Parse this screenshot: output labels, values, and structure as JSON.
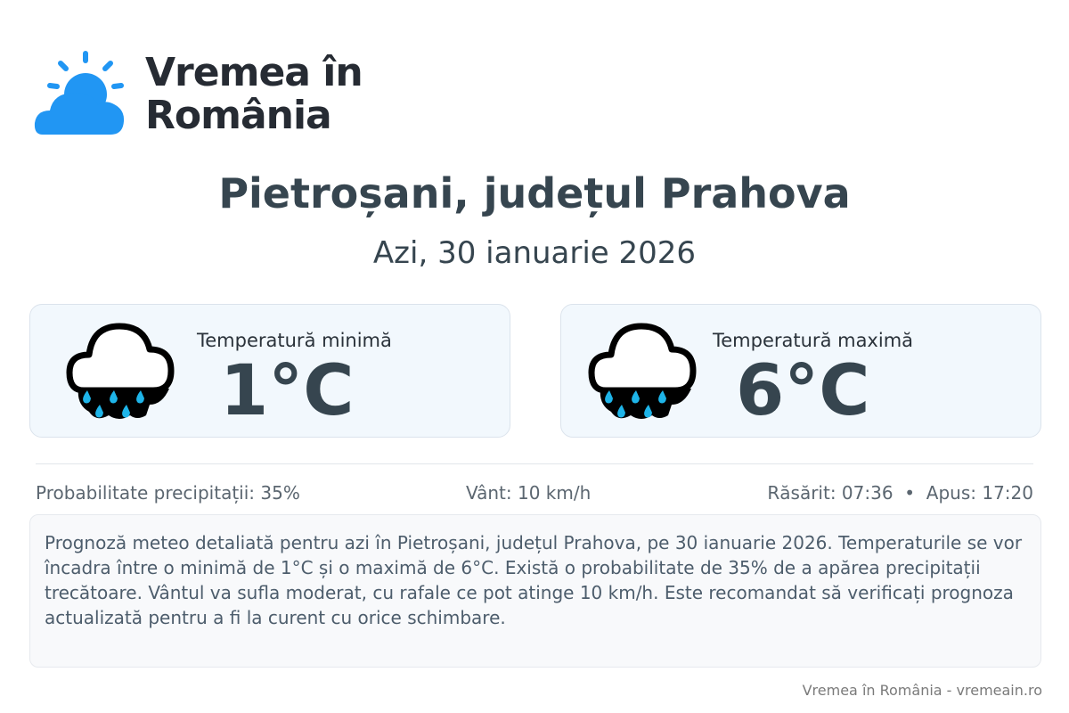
{
  "brand": {
    "name": "Vremea în România",
    "line1": "Vremea în",
    "line2": "România",
    "color": "#2196f3"
  },
  "location_title": "Pietroșani, județul Prahova",
  "date": "Azi, 30 ianuarie 2026",
  "cards": [
    {
      "label": "Temperatură minimă",
      "value": "1°C",
      "icon": "rain-cloud-icon"
    },
    {
      "label": "Temperatură maximă",
      "value": "6°C",
      "icon": "rain-cloud-icon"
    }
  ],
  "info": {
    "precipitation": "Probabilitate precipitații: 35%",
    "wind": "Vânt: 10 km/h",
    "sun": "Răsărit: 07:36  •  Apus: 17:20"
  },
  "description": "Prognoză meteo detaliată pentru azi în Pietroșani, județul Prahova, pe 30 ianuarie 2026. Temperaturile se vor încadra între o minimă de 1°C și o maximă de 6°C. Există o probabilitate de 35% de a apărea precipitații trecătoare. Vântul va sufla moderat, cu rafale ce pot atinge 10 km/h. Este recomandat să verificați prognoza actualizată pentru a fi la curent cu orice schimbare.",
  "footer": "Vremea în România - vremeain.ro"
}
